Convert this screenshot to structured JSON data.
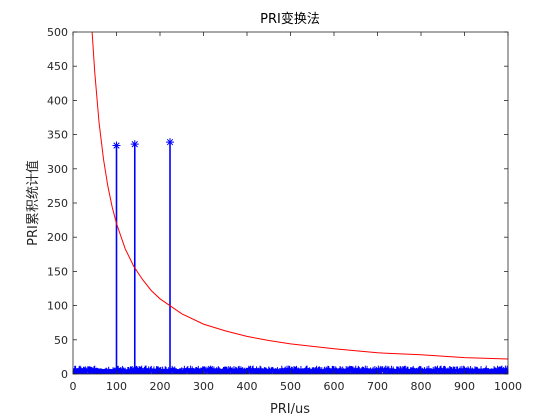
{
  "chart_data": {
    "type": "line",
    "title": "PRI变换法",
    "xlabel": "PRI/us",
    "ylabel": "PRI累积统计值",
    "xlim": [
      0,
      1000
    ],
    "ylim": [
      0,
      500
    ],
    "xticks": [
      "0",
      "100",
      "200",
      "300",
      "400",
      "500",
      "600",
      "700",
      "800",
      "900",
      "1000"
    ],
    "yticks": [
      "0",
      "50",
      "100",
      "150",
      "200",
      "250",
      "300",
      "350",
      "400",
      "450",
      "500"
    ],
    "grid": false,
    "legend": "none",
    "colors": {
      "stat": "#0000ff",
      "threshold": "#ff0000"
    },
    "series": [
      {
        "style": "stem-star",
        "color": "#0000ff",
        "peaks": [
          {
            "x": 100,
            "y": 334
          },
          {
            "x": 142,
            "y": 336
          },
          {
            "x": 223,
            "y": 339
          }
        ],
        "baseline_noise_max": 8
      },
      {
        "style": "line",
        "color": "#ff0000",
        "formula_hint": "y = 22000 / x",
        "x": [
          44,
          50,
          60,
          70,
          80,
          90,
          100,
          120,
          140,
          160,
          180,
          200,
          250,
          300,
          350,
          400,
          450,
          500,
          600,
          700,
          800,
          900,
          1000
        ],
        "y": [
          500,
          440,
          367,
          314,
          275,
          244,
          220,
          183,
          157,
          138,
          122,
          110,
          88,
          73,
          63,
          55,
          49,
          44,
          37,
          31,
          28,
          24,
          22
        ]
      }
    ]
  }
}
